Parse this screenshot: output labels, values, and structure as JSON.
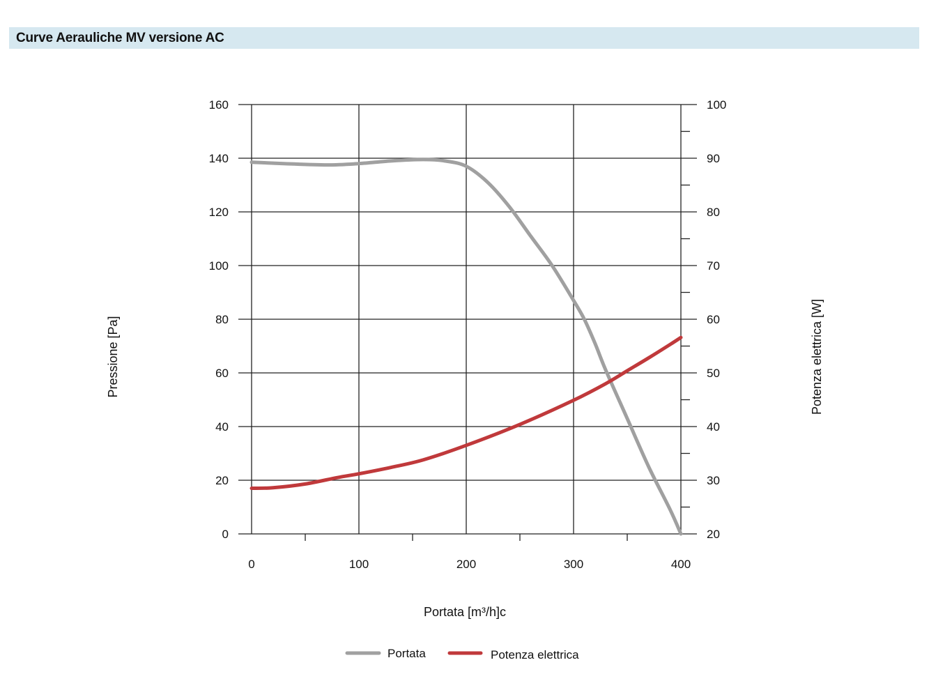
{
  "header": {
    "title": "Curve Aerauliche MV versione AC"
  },
  "chart_data": {
    "type": "line",
    "x_axis": {
      "label": "Portata [m³/h]c",
      "range": [
        0,
        400
      ],
      "ticks": [
        "0",
        "100",
        "200",
        "300",
        "400"
      ]
    },
    "y_axis_left": {
      "label": "Pressione [Pa]",
      "range": [
        0,
        160
      ],
      "ticks": [
        "0",
        "20",
        "40",
        "60",
        "80",
        "100",
        "120",
        "140",
        "160"
      ]
    },
    "y_axis_right": {
      "label": "Potenza elettrica [W]",
      "range": [
        20,
        100
      ],
      "ticks": [
        "20",
        "30",
        "40",
        "50",
        "60",
        "70",
        "80",
        "90",
        "100"
      ]
    },
    "grid": true,
    "legend_position": "bottom",
    "series": [
      {
        "name": "Portata",
        "axis": "left",
        "color": "#a0a0a0",
        "x": [
          0,
          30,
          70,
          100,
          130,
          160,
          180,
          200,
          220,
          240,
          260,
          280,
          300,
          310,
          320,
          330,
          350,
          370,
          390,
          400
        ],
        "y": [
          138.5,
          138,
          137.5,
          138,
          139,
          139.5,
          139,
          137,
          131,
          122,
          111,
          100,
          87,
          80,
          71,
          61,
          43,
          25,
          9,
          0
        ]
      },
      {
        "name": "Potenza elettrica",
        "axis": "right",
        "color": "#c0393b",
        "x": [
          0,
          20,
          50,
          80,
          100,
          130,
          160,
          200,
          250,
          300,
          330,
          350,
          370,
          390,
          400
        ],
        "y": [
          28.5,
          28.6,
          29.3,
          30.5,
          31.2,
          32.4,
          33.8,
          36.5,
          40.4,
          44.9,
          48,
          50.4,
          52.8,
          55.3,
          56.6
        ]
      }
    ]
  }
}
